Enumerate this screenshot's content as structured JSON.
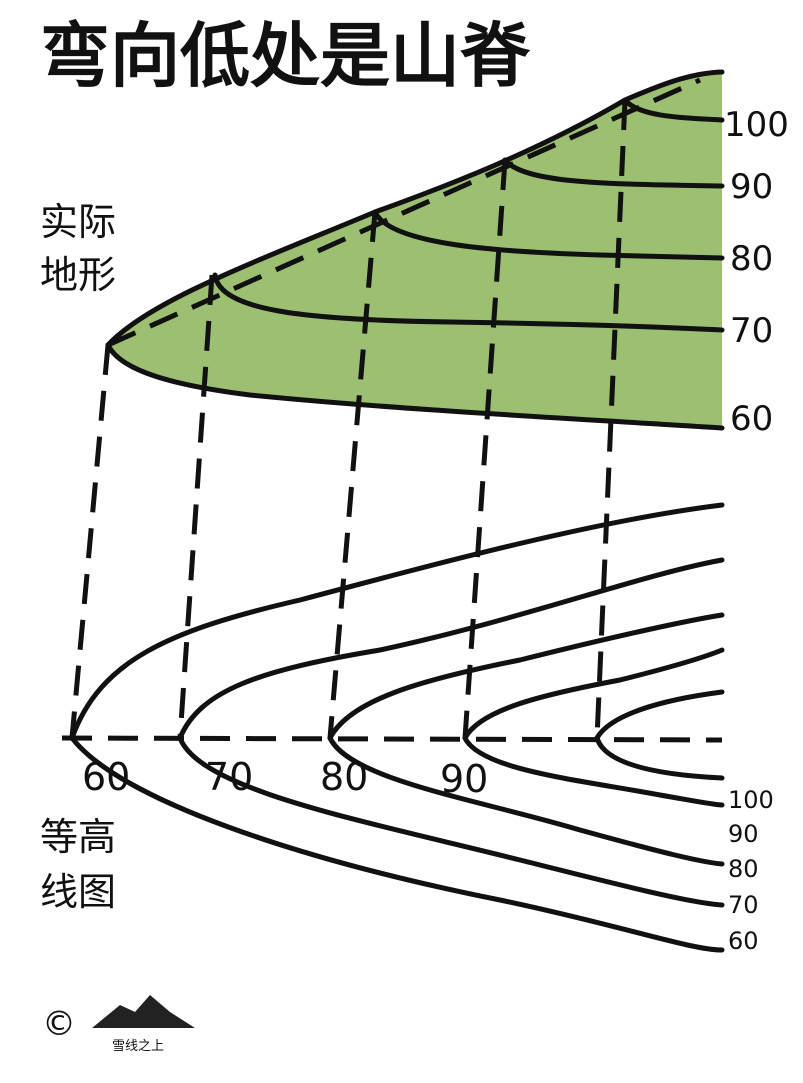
{
  "title": "弯向低处是山脊",
  "terrain_label": [
    "实际",
    "地形"
  ],
  "contour_label": [
    "等高",
    "线图"
  ],
  "terrain_elevations": [
    "100",
    "90",
    "80",
    "70",
    "60"
  ],
  "axis_elevations": [
    "60",
    "70",
    "80",
    "90"
  ],
  "contour_elevations": [
    "100",
    "90",
    "80",
    "70",
    "60"
  ],
  "copyright": "©",
  "logo": "雪线之上"
}
